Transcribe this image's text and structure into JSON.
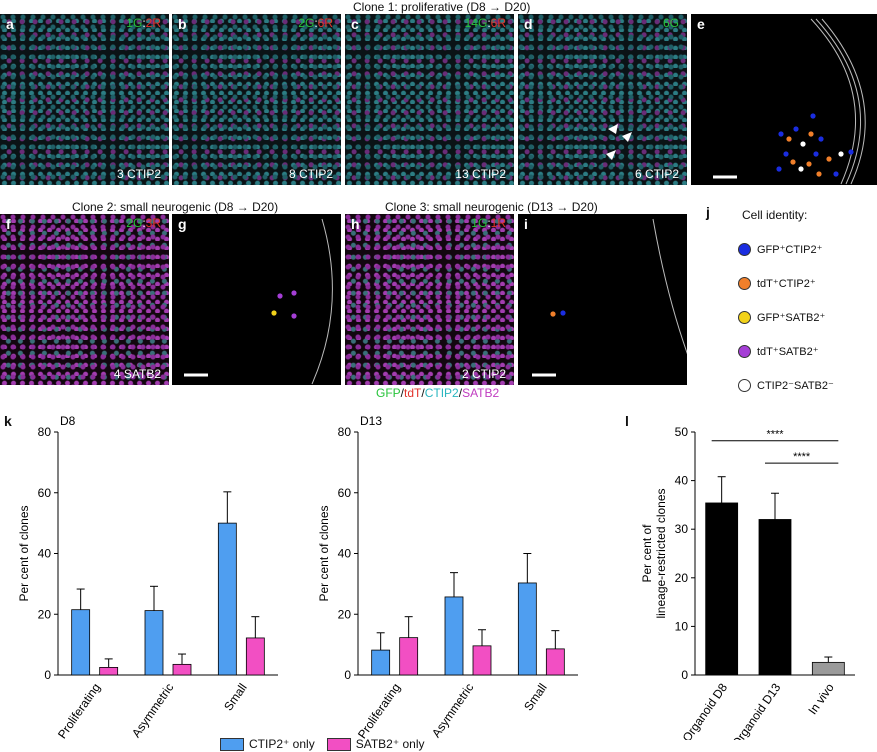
{
  "clone1_title": "Clone 1: proliferative (D8 → D20)",
  "clone2_title": "Clone 2: small neurogenic (D8 → D20)",
  "clone3_title": "Clone 3: small neurogenic (D13 → D20)",
  "panels": {
    "a": {
      "letter": "a",
      "g": "1G",
      "r": "2R",
      "caption": "3 CTIP2"
    },
    "b": {
      "letter": "b",
      "g": "2G",
      "r": "6R",
      "caption": "8 CTIP2"
    },
    "c": {
      "letter": "c",
      "g": "14G",
      "r": "6R",
      "caption": "13 CTIP2"
    },
    "d": {
      "letter": "d",
      "g": "6G",
      "r": "",
      "caption": "6 CTIP2"
    },
    "e": {
      "letter": "e"
    },
    "f": {
      "letter": "f",
      "g": "2G",
      "r": "3R",
      "caption": "4 SATB2"
    },
    "g": {
      "letter": "g"
    },
    "h": {
      "letter": "h",
      "g": "1G",
      "r": "1R",
      "caption": "2 CTIP2"
    },
    "i": {
      "letter": "i"
    }
  },
  "stain_legend": {
    "gfp": "GFP",
    "tdt": "tdT",
    "ctip2": "CTIP2",
    "satb2": "SATB2"
  },
  "cell_identity": {
    "letter": "j",
    "title": "Cell identity:",
    "items": [
      {
        "label": "GFP⁺CTIP2⁺",
        "color": "#1a2de0"
      },
      {
        "label": "tdT⁺CTIP2⁺",
        "color": "#f07f2a"
      },
      {
        "label": "GFP⁺SATB2⁺",
        "color": "#f2d21a"
      },
      {
        "label": "tdT⁺SATB2⁺",
        "color": "#a53ed6"
      },
      {
        "label": "CTIP2⁻SATB2⁻",
        "color": "#ffffff"
      }
    ]
  },
  "letters": {
    "k": "k",
    "l": "l"
  },
  "chart_data": [
    {
      "type": "bar",
      "title": "D8",
      "ylabel": "Per cent of clones",
      "ylim": [
        0,
        80
      ],
      "yticks": [
        0,
        20,
        40,
        60,
        80
      ],
      "categories": [
        "Proliferating",
        "Asymmetric",
        "Small"
      ],
      "series": [
        {
          "name": "CTIP2⁺ only",
          "color": "#4f9ef0",
          "values": [
            21.5,
            21.2,
            50
          ],
          "errors": [
            6.8,
            8,
            10.3
          ]
        },
        {
          "name": "SATB2⁺ only",
          "color": "#f24fc3",
          "values": [
            2.5,
            3.5,
            12.2
          ],
          "errors": [
            2.8,
            3.4,
            7
          ]
        }
      ]
    },
    {
      "type": "bar",
      "title": "D13",
      "ylabel": "Per cent of clones",
      "ylim": [
        0,
        80
      ],
      "yticks": [
        0,
        20,
        40,
        60,
        80
      ],
      "categories": [
        "Proliferating",
        "Asymmetric",
        "Small"
      ],
      "series": [
        {
          "name": "CTIP2⁺ only",
          "color": "#4f9ef0",
          "values": [
            8.2,
            25.7,
            30.3
          ],
          "errors": [
            5.7,
            8,
            9.7
          ]
        },
        {
          "name": "SATB2⁺ only",
          "color": "#f24fc3",
          "values": [
            12.3,
            9.6,
            8.6
          ],
          "errors": [
            6.9,
            5.3,
            6
          ]
        }
      ]
    },
    {
      "type": "bar",
      "title": "",
      "ylabel": "Per cent of lineage-restricted clones",
      "ylim": [
        0,
        50
      ],
      "yticks": [
        0,
        10,
        20,
        30,
        40,
        50
      ],
      "categories": [
        "Organoid D8",
        "Organoid D13",
        "In vivo"
      ],
      "colors": [
        "#000000",
        "#000000",
        "#9a9a9a"
      ],
      "values": [
        35.4,
        32,
        2.6
      ],
      "errors": [
        5.4,
        5.4,
        1.1
      ],
      "significance": [
        "****",
        "****"
      ]
    }
  ],
  "bar_legend": [
    {
      "label": "CTIP2⁺ only",
      "color": "#4f9ef0"
    },
    {
      "label": "SATB2⁺ only",
      "color": "#f24fc3"
    }
  ]
}
